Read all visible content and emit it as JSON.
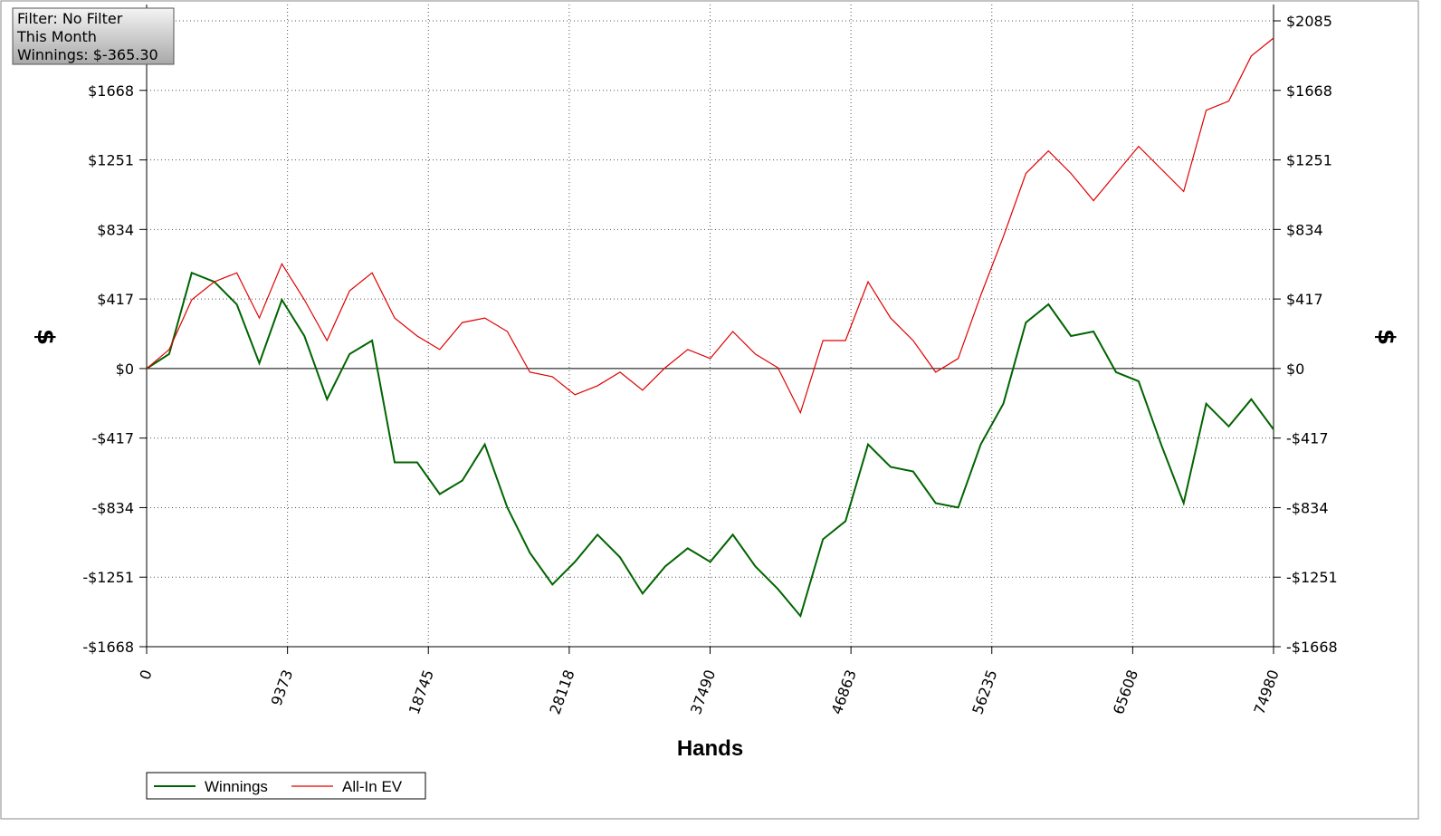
{
  "chart_data": {
    "type": "line",
    "info": [
      "Filter: No Filter",
      "This Month",
      "Winnings: $-365.30"
    ],
    "xlabel": "Hands",
    "ylabel": "$",
    "xlim": [
      0,
      74980
    ],
    "xticks": [
      0,
      9373,
      18745,
      28118,
      37490,
      46863,
      56235,
      65608,
      74980
    ],
    "ylim": [
      -1668,
      2085
    ],
    "yticks": [
      {
        "value": -1668,
        "label": "-$1668"
      },
      {
        "value": -1251,
        "label": "-$1251"
      },
      {
        "value": -834,
        "label": "-$834"
      },
      {
        "value": -417,
        "label": "-$417"
      },
      {
        "value": 0,
        "label": "$0"
      },
      {
        "value": 417,
        "label": "$417"
      },
      {
        "value": 834,
        "label": "$834"
      },
      {
        "value": 1251,
        "label": "$1251"
      },
      {
        "value": 1668,
        "label": "$1668"
      },
      {
        "value": 2085,
        "label": "$2085"
      }
    ],
    "grid": true,
    "x": [
      0,
      1500,
      3000,
      4500,
      6000,
      7500,
      9000,
      10500,
      12000,
      13500,
      15000,
      16500,
      18000,
      19500,
      21000,
      22500,
      24000,
      25500,
      27000,
      28500,
      30000,
      31500,
      33000,
      34500,
      36000,
      37500,
      39000,
      40500,
      42000,
      43500,
      45000,
      46500,
      48000,
      49500,
      51000,
      52500,
      54000,
      55500,
      57000,
      58500,
      60000,
      61500,
      63000,
      64500,
      66000,
      67500,
      69000,
      70500,
      72000,
      73500,
      74980
    ],
    "series": [
      {
        "name": "Winnings",
        "color": "#006400",
        "values": [
          0,
          87,
          574,
          520,
          385,
          32,
          412,
          195,
          -184,
          87,
          168,
          -563,
          -563,
          -753,
          -672,
          -455,
          -834,
          -1105,
          -1295,
          -1159,
          -996,
          -1132,
          -1349,
          -1186,
          -1078,
          -1159,
          -996,
          -1186,
          -1322,
          -1484,
          -1024,
          -915,
          -455,
          -590,
          -617,
          -807,
          -834,
          -455,
          -211,
          276,
          385,
          195,
          222,
          -22,
          -76,
          -455,
          -807,
          -211,
          -347,
          -184,
          -365
        ]
      },
      {
        "name": "All-In EV",
        "color": "#e00000",
        "values": [
          0,
          114,
          412,
          520,
          574,
          303,
          628,
          412,
          168,
          466,
          574,
          303,
          195,
          114,
          276,
          303,
          222,
          -22,
          -49,
          -157,
          -103,
          -22,
          -130,
          5,
          114,
          60,
          222,
          87,
          5,
          -265,
          168,
          168,
          520,
          303,
          168,
          -22,
          60,
          439,
          791,
          1170,
          1305,
          1170,
          1007,
          1170,
          1332,
          1197,
          1062,
          1549,
          1603,
          1874,
          1982
        ]
      }
    ]
  }
}
